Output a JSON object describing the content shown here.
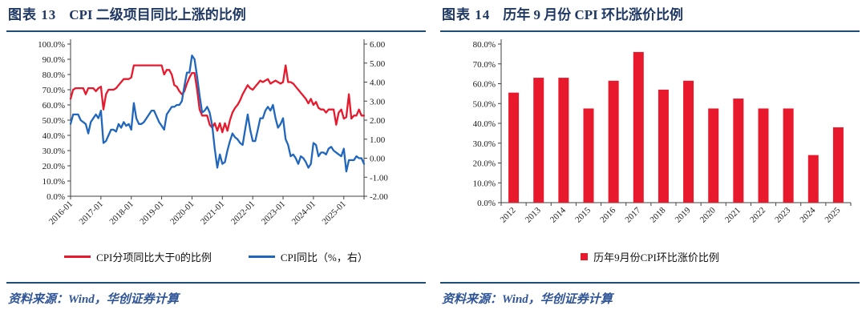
{
  "panels": {
    "left": {
      "title_prefix": "图表 13",
      "title": "CPI 二级项目同比上涨的比例",
      "source": "资料来源：Wind，华创证券计算"
    },
    "right": {
      "title_prefix": "图表 14",
      "title": "历年 9 月份 CPI 环比涨价比例",
      "source": "资料来源：Wind，华创证券计算"
    }
  },
  "colors": {
    "title_navy": "#1f3864",
    "rule_blue": "#1f4e79",
    "source_blue": "#2f5597",
    "series_red": "#e8192c",
    "series_blue": "#2166bd",
    "axis_gray": "#404040"
  },
  "chart_data": [
    {
      "type": "line",
      "title": "CPI 二级项目同比上涨的比例",
      "x_start": "2016-01",
      "x_end": "2025-09",
      "frequency": "monthly",
      "x_tick_labels": [
        "2016-01",
        "2017-01",
        "2018-01",
        "2019-01",
        "2020-01",
        "2021-01",
        "2022-01",
        "2023-01",
        "2024-01",
        "2025-01"
      ],
      "left_axis": {
        "min": 0,
        "max": 100,
        "step": 10,
        "format": "percent1"
      },
      "right_axis": {
        "min": -2,
        "max": 6,
        "step": 1,
        "format": "dec2"
      },
      "grid": false,
      "legend_position": "bottom",
      "series": [
        {
          "name": "CPI分项同比大于0的比例",
          "axis": "left",
          "color": "#e8192c",
          "values": [
            64,
            70,
            71,
            71,
            71,
            71,
            67,
            71,
            71,
            71,
            69,
            71,
            72,
            57,
            67,
            70,
            70,
            70,
            71,
            73,
            75,
            77,
            77,
            77,
            78,
            86,
            86,
            86,
            86,
            86,
            86,
            86,
            86,
            86,
            86,
            86,
            86,
            80,
            83,
            83,
            80,
            73,
            72,
            69,
            67,
            69,
            74,
            78,
            81,
            81,
            70,
            57,
            53,
            53,
            53,
            47,
            45,
            48,
            43,
            48,
            42,
            48,
            43,
            50,
            55,
            58,
            60,
            63,
            67,
            70,
            73,
            71,
            70,
            72,
            74,
            76,
            75,
            76,
            77,
            74,
            75,
            76,
            75,
            74,
            75,
            86,
            75,
            75,
            74,
            72,
            70,
            68,
            66,
            64,
            61,
            64,
            60,
            62,
            58,
            57,
            57,
            55,
            57,
            57,
            57,
            47,
            55,
            57,
            51,
            52,
            67,
            51,
            53,
            53,
            57,
            53,
            53
          ]
        },
        {
          "name": "CPI同比（%，右）",
          "axis": "right",
          "color": "#2166bd",
          "values": [
            1.8,
            2.3,
            2.3,
            2.3,
            2.0,
            1.9,
            1.8,
            1.3,
            1.9,
            2.1,
            2.3,
            2.1,
            2.5,
            0.8,
            0.9,
            1.2,
            1.5,
            1.5,
            1.4,
            1.8,
            1.6,
            1.9,
            1.7,
            1.8,
            1.5,
            2.9,
            2.1,
            1.8,
            1.8,
            1.9,
            2.1,
            2.3,
            2.5,
            2.5,
            2.2,
            1.9,
            1.7,
            1.5,
            2.3,
            2.5,
            2.7,
            2.7,
            2.8,
            2.8,
            3.0,
            3.8,
            4.5,
            4.5,
            5.4,
            5.2,
            4.3,
            3.3,
            2.4,
            2.5,
            2.7,
            2.4,
            1.7,
            0.5,
            -0.5,
            0.2,
            -0.3,
            -0.2,
            0.4,
            0.9,
            1.3,
            1.1,
            1.0,
            0.8,
            0.7,
            1.5,
            2.3,
            1.5,
            0.9,
            0.9,
            1.5,
            2.1,
            2.1,
            2.5,
            2.7,
            2.5,
            2.8,
            2.1,
            1.6,
            1.8,
            2.1,
            1.0,
            0.7,
            0.1,
            0.2,
            0.0,
            -0.3,
            0.1,
            0.0,
            -0.2,
            -0.5,
            -0.3,
            0.8,
            0.7,
            0.1,
            0.3,
            0.3,
            0.2,
            0.5,
            0.6,
            0.4,
            0.3,
            0.2,
            0.1,
            0.5,
            -0.7,
            -0.1,
            -0.1,
            -0.1,
            0.1,
            0.0,
            0.0,
            -0.3
          ]
        }
      ]
    },
    {
      "type": "bar",
      "title": "历年 9 月份 CPI 环比涨价比例",
      "legend": "历年9月份CPI环比涨价比例",
      "categories": [
        "2012",
        "2013",
        "2014",
        "2015",
        "2016",
        "2017",
        "2018",
        "2019",
        "2020",
        "2021",
        "2022",
        "2023",
        "2024",
        "2025"
      ],
      "values": [
        55.5,
        63,
        63,
        47.5,
        61.5,
        76,
        57,
        61.5,
        47.5,
        52.5,
        47.5,
        47.5,
        24,
        38
      ],
      "ylim": [
        0,
        80
      ],
      "step": 10,
      "y_format": "percent1",
      "bar_color": "#e8192c",
      "grid": false,
      "legend_position": "bottom"
    }
  ]
}
